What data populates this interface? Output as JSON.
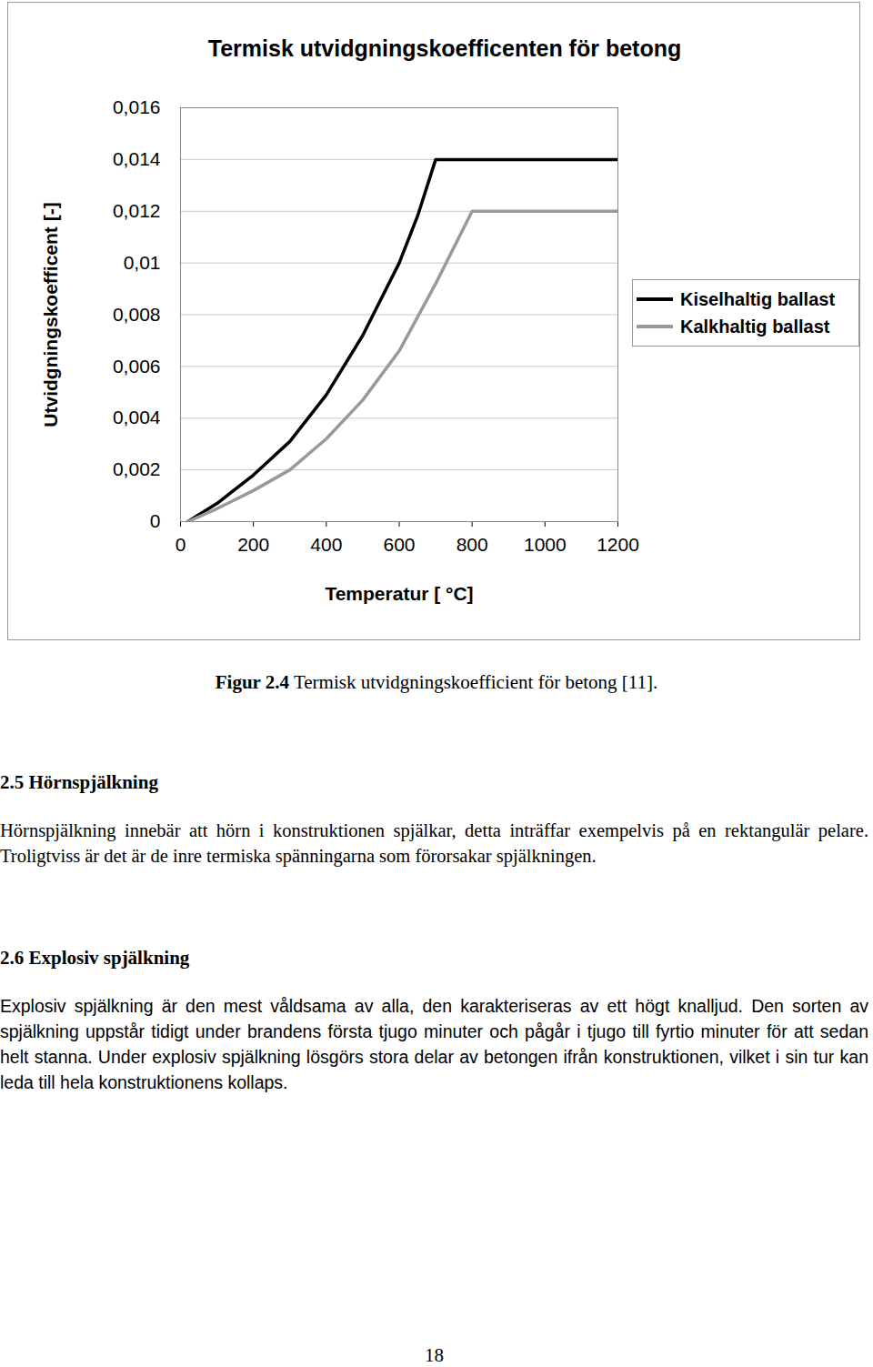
{
  "chart_data": {
    "type": "line",
    "title": "Termisk utvidgningskoefficenten för betong",
    "x_label": "Temperatur [ °C]",
    "y_label": "Utvidgningskoefficent [-]",
    "xlim": [
      0,
      1200
    ],
    "xticks": [
      0,
      200,
      400,
      600,
      800,
      1000,
      1200
    ],
    "ylim": [
      0,
      0.016
    ],
    "yticks": [
      0,
      {
        "value": 0.002,
        "label": "0,002"
      },
      {
        "value": 0.004,
        "label": "0,004"
      },
      {
        "value": 0.006,
        "label": "0,006"
      },
      {
        "value": 0.008,
        "label": "0,008"
      },
      {
        "value": 0.01,
        "label": "0,01"
      },
      {
        "value": 0.012,
        "label": "0,012"
      },
      {
        "value": 0.014,
        "label": "0,014"
      },
      {
        "value": 0.016,
        "label": "0,016"
      }
    ],
    "grid": true,
    "legend": "right",
    "series": [
      {
        "name": "Kiselhaltig ballast",
        "color": "#000000",
        "x": [
          20,
          100,
          200,
          300,
          400,
          500,
          600,
          650,
          700,
          1200
        ],
        "values": [
          0,
          0.0007,
          0.0018,
          0.0031,
          0.0049,
          0.0072,
          0.01,
          0.0118,
          0.014,
          0.014
        ]
      },
      {
        "name": "Kalkhaltig ballast",
        "color": "#999999",
        "x": [
          20,
          100,
          200,
          300,
          400,
          500,
          600,
          700,
          800,
          1200
        ],
        "values": [
          0,
          0.0005,
          0.0012,
          0.002,
          0.0032,
          0.0047,
          0.0066,
          0.0092,
          0.012,
          0.012
        ]
      }
    ]
  },
  "caption": {
    "label": "Figur 2.4",
    "text": "Termisk utvidgningskoefficient för betong [11]."
  },
  "sections": [
    {
      "heading": "2.5 Hörnspjälkning",
      "text": "Hörnspjälkning innebär att hörn i konstruktionen spjälkar, detta inträffar exempelvis på en rektangulär pelare. Troligtviss är det är de inre termiska spänningarna som förorsakar spjälkningen."
    },
    {
      "heading": "2.6 Explosiv spjälkning",
      "text": "Explosiv spjälkning är den mest våldsama av alla, den karakteriseras av ett högt knalljud. Den sorten av spjälkning uppstår tidigt under brandens första tjugo minuter och pågår i tjugo till fyrtio minuter för att sedan helt stanna. Under explosiv spjälkning lösgörs stora delar av betongen ifrån konstruktionen, vilket i sin tur kan leda till hela konstruktionens kollaps."
    }
  ],
  "page_number": "18"
}
